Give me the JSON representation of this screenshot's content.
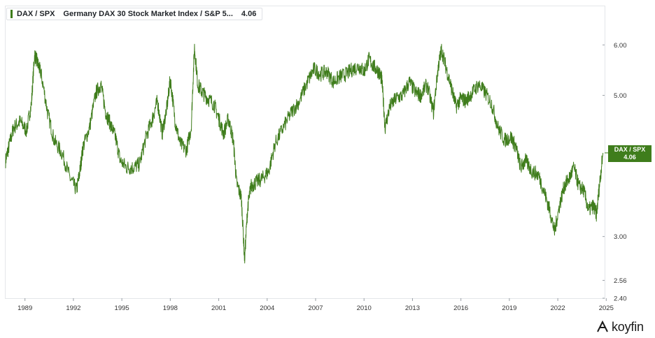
{
  "legend": {
    "ticker": "DAX / SPX",
    "name": "Germany DAX 30 Stock Market Index / S&P 5...",
    "value": "4.06",
    "color": "#3f7d1c"
  },
  "badge": {
    "ticker": "DAX / SPX",
    "value": "4.06"
  },
  "branding": {
    "logo_text": "koyfin",
    "logo_icon": "koyfin-k-icon"
  },
  "chart_data": {
    "type": "line",
    "y_scale": "log",
    "ylim": [
      2.4,
      6.9
    ],
    "xlim": [
      1988.3,
      2025.4
    ],
    "x_ticks": [
      "1989",
      "1992",
      "1995",
      "1998",
      "2001",
      "2004",
      "2007",
      "2010",
      "2013",
      "2016",
      "2019",
      "2022",
      "2025"
    ],
    "y_ticks": [
      "2.40",
      "2.56",
      "3.00",
      "5.00",
      "6.00"
    ],
    "grid": false,
    "color": "#3f7d1c",
    "series": [
      {
        "name": "DAX / SPX",
        "x": [
          1988.3,
          1988.5,
          1988.8,
          1989.2,
          1989.6,
          1989.9,
          1990.1,
          1990.3,
          1990.5,
          1990.9,
          1991.3,
          1991.8,
          1992.3,
          1992.7,
          1992.9,
          1993.1,
          1993.5,
          1993.9,
          1994.2,
          1994.5,
          1994.8,
          1995.1,
          1995.4,
          1995.8,
          1996.2,
          1996.6,
          1997.0,
          1997.4,
          1997.7,
          1998.0,
          1998.3,
          1998.5,
          1998.8,
          1999.1,
          1999.5,
          1999.8,
          2000.0,
          2000.2,
          2000.5,
          2000.8,
          2001.2,
          2001.5,
          2001.8,
          2002.1,
          2002.4,
          2002.6,
          2002.9,
          2003.1,
          2003.3,
          2003.5,
          2003.8,
          2004.2,
          2004.6,
          2005.0,
          2005.5,
          2006.0,
          2006.5,
          2007.0,
          2007.4,
          2007.8,
          2008.2,
          2008.6,
          2009.0,
          2009.4,
          2009.8,
          2010.2,
          2010.5,
          2010.8,
          2011.1,
          2011.4,
          2011.6,
          2011.8,
          2012.1,
          2012.5,
          2012.9,
          2013.3,
          2013.7,
          2014.0,
          2014.4,
          2014.8,
          2015.1,
          2015.3,
          2015.6,
          2015.9,
          2016.2,
          2016.5,
          2016.8,
          2017.2,
          2017.6,
          2018.0,
          2018.4,
          2018.8,
          2019.2,
          2019.6,
          2019.9,
          2020.2,
          2020.5,
          2020.9,
          2021.3,
          2021.7,
          2022.0,
          2022.3,
          2022.6,
          2022.9,
          2023.2,
          2023.5,
          2023.8,
          2024.1,
          2024.4,
          2024.7,
          2024.9,
          2025.1,
          2025.3
        ],
        "values": [
          3.95,
          4.15,
          4.45,
          4.55,
          4.4,
          4.85,
          5.8,
          5.6,
          5.4,
          4.7,
          4.25,
          4.05,
          3.7,
          3.55,
          3.8,
          4.15,
          4.45,
          5.05,
          5.2,
          4.7,
          4.5,
          4.3,
          3.95,
          3.85,
          3.85,
          3.9,
          4.3,
          4.6,
          4.9,
          4.35,
          4.8,
          5.3,
          4.55,
          4.2,
          4.1,
          4.45,
          5.95,
          5.2,
          5.05,
          4.95,
          4.85,
          4.6,
          4.35,
          4.6,
          4.25,
          3.65,
          3.45,
          2.75,
          3.35,
          3.6,
          3.65,
          3.7,
          3.8,
          4.2,
          4.45,
          4.7,
          4.9,
          5.25,
          5.5,
          5.4,
          5.45,
          5.25,
          5.35,
          5.4,
          5.5,
          5.55,
          5.45,
          5.7,
          5.55,
          5.45,
          5.3,
          4.45,
          4.8,
          4.95,
          5.0,
          5.25,
          5.05,
          5.0,
          5.2,
          4.7,
          5.55,
          5.9,
          5.5,
          5.15,
          4.8,
          4.95,
          4.9,
          5.05,
          5.2,
          5.05,
          4.85,
          4.45,
          4.25,
          4.3,
          4.15,
          3.85,
          3.95,
          3.8,
          3.75,
          3.5,
          3.3,
          3.05,
          3.35,
          3.6,
          3.7,
          3.85,
          3.6,
          3.55,
          3.3,
          3.35,
          3.25,
          3.65,
          4.06
        ]
      }
    ]
  }
}
